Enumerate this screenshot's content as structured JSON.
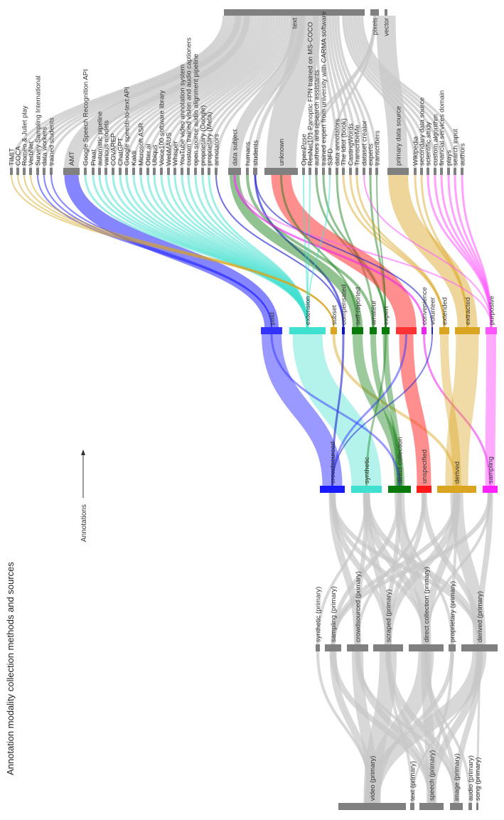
{
  "title": "Annotation modality collection methods and sources",
  "annotations_label": "Annotations",
  "colors": {
    "link_gray": "#c8c8c8",
    "node_gray": "#808080",
    "paid": "#3333ff",
    "extension": "#40e0d0",
    "subset": "#daa520",
    "compensated": "#1010cc",
    "self_reported": "#0a7a0a",
    "amateur": "#0a7a0a",
    "expert": "#0a7a0a",
    "unknown": "#ff3333",
    "convenience": "#ee22ee",
    "volunteer": "#2222cc",
    "extended": "#daa520",
    "extracted": "#daa520",
    "purposive": "#ff55ff",
    "crowdsourced": "#1a1aff",
    "synthetic": "#40e0d0",
    "direct": "#0a7a0a",
    "unspecified": "#ff1a1a",
    "derived": "#daa520",
    "sampling": "#ff22ff"
  },
  "modalities": [
    {
      "id": "text",
      "label": "text"
    },
    {
      "id": "pixels",
      "label": "pixels"
    },
    {
      "id": "vector",
      "label": "vector"
    }
  ],
  "sources": [
    {
      "id": "timit",
      "label": "TIMIT"
    },
    {
      "id": "coca",
      "label": "COCA"
    },
    {
      "id": "romeo",
      "label": "Romeo & Juliet play"
    },
    {
      "id": "verbnet",
      "label": "VerbNet"
    },
    {
      "id": "survey",
      "label": "Survey Sampling International"
    },
    {
      "id": "dataworkers",
      "label": "data workers"
    },
    {
      "id": "trained_students",
      "label": "trained students"
    },
    {
      "id": "amt",
      "label": "AMT"
    },
    {
      "id": "gsr",
      "label": "Google Speech Recognition API"
    },
    {
      "id": "praat",
      "label": "Praat"
    },
    {
      "id": "auto_pipeline",
      "label": "automatic pipeline"
    },
    {
      "id": "various_models",
      "label": "various models"
    },
    {
      "id": "covarep",
      "label": "COVAREP"
    },
    {
      "id": "chatgpt",
      "label": "ChatGPT"
    },
    {
      "id": "gstt",
      "label": "Google speech-to-text API"
    },
    {
      "id": "kaldi",
      "label": "Kaldi"
    },
    {
      "id": "msasr",
      "label": "Microsoft ASR"
    },
    {
      "id": "otter",
      "label": "Otter.ai"
    },
    {
      "id": "ubiqus",
      "label": "Ubiqus"
    },
    {
      "id": "voice100",
      "label": "Voice100 software library"
    },
    {
      "id": "webmaus",
      "label": "WebMAUS"
    },
    {
      "id": "whisper",
      "label": "Whisper"
    },
    {
      "id": "ytvas",
      "label": "YouTube video annotation system"
    },
    {
      "id": "custom_trained",
      "label": "custom trained vision and audio captioners"
    },
    {
      "id": "os_audio",
      "label": "open source audio alignment pipeline"
    },
    {
      "id": "prop_google",
      "label": "proprietary (Google)"
    },
    {
      "id": "prop_meta",
      "label": "proprietary (Meta)"
    },
    {
      "id": "annotators",
      "label": "annotators"
    },
    {
      "id": "data_subject",
      "label": "data subject"
    },
    {
      "id": "humans",
      "label": "humans"
    },
    {
      "id": "students",
      "label": "students"
    },
    {
      "id": "unknown",
      "label": "unknown"
    },
    {
      "id": "openpose",
      "label": "OpenPose"
    },
    {
      "id": "resnet",
      "label": "ResNet101 Panoptic FPN trained on MS-COCO"
    },
    {
      "id": "authors_assist",
      "label": "authors and research assistants"
    },
    {
      "id": "trained_expert",
      "label": "trained expert from university with CARMA software"
    },
    {
      "id": "s3fd",
      "label": "S3FD"
    },
    {
      "id": "data_annotators",
      "label": "data annotators"
    },
    {
      "id": "idiot",
      "label": "The Idiot (book)"
    },
    {
      "id": "castingwords",
      "label": "CastingWords"
    },
    {
      "id": "transcribeme",
      "label": "TranscribeMe"
    },
    {
      "id": "dataset_creator",
      "label": "dataset creator"
    },
    {
      "id": "experts",
      "label": "experts"
    },
    {
      "id": "transcribers",
      "label": "transcribers"
    },
    {
      "id": "primary_ds",
      "label": "primary data source"
    },
    {
      "id": "wikipedia",
      "label": "Wikipedia"
    },
    {
      "id": "secondary_ds",
      "label": "secondary data source"
    },
    {
      "id": "scientific",
      "label": "scientific study"
    },
    {
      "id": "custom_algo",
      "label": "custom algorithm"
    },
    {
      "id": "financial",
      "label": "financial services domain"
    },
    {
      "id": "plays",
      "label": "plays"
    },
    {
      "id": "search_input",
      "label": "search input"
    },
    {
      "id": "authors",
      "label": "authors"
    }
  ],
  "annotation_methods": [
    {
      "id": "paid",
      "label": "paid"
    },
    {
      "id": "extension",
      "label": "extension"
    },
    {
      "id": "subset",
      "label": "subset"
    },
    {
      "id": "compensated",
      "label": "compensated"
    },
    {
      "id": "self_reported",
      "label": "self-reported"
    },
    {
      "id": "amateur",
      "label": "amateur"
    },
    {
      "id": "expert",
      "label": "expert"
    },
    {
      "id": "unknown_m",
      "label": ""
    },
    {
      "id": "convenience",
      "label": "convenience"
    },
    {
      "id": "volunteer",
      "label": "volunteer"
    },
    {
      "id": "extended",
      "label": "extended"
    },
    {
      "id": "extracted",
      "label": "extracted"
    },
    {
      "id": "purposive",
      "label": "purposive"
    }
  ],
  "collection_types": [
    {
      "id": "crowdsourced",
      "label": "crowdsourced"
    },
    {
      "id": "synthetic",
      "label": "synthetic"
    },
    {
      "id": "direct",
      "label": "direct collection"
    },
    {
      "id": "unspecified",
      "label": "unspecified"
    },
    {
      "id": "derived",
      "label": "derived"
    },
    {
      "id": "sampling",
      "label": "sampling"
    }
  ],
  "primary_methods": [
    {
      "id": "p_synthetic",
      "label": "synthetic (primary)"
    },
    {
      "id": "p_sampling",
      "label": "sampling (primary)"
    },
    {
      "id": "p_crowdsourced",
      "label": "crowdsourced (primary)"
    },
    {
      "id": "p_scraped",
      "label": "scraped (primary)"
    },
    {
      "id": "p_direct",
      "label": "direct collection (primary)"
    },
    {
      "id": "p_proprietary",
      "label": "proprietary (primary)"
    },
    {
      "id": "p_derived",
      "label": "derived (primary)"
    }
  ],
  "primary_modalities": [
    {
      "id": "m_video",
      "label": "video (primary)"
    },
    {
      "id": "m_text",
      "label": "text (primary)"
    },
    {
      "id": "m_speech",
      "label": "speech (primary)"
    },
    {
      "id": "m_image",
      "label": "image (primary)"
    },
    {
      "id": "m_audio",
      "label": "audio (primary)"
    },
    {
      "id": "m_song",
      "label": "song (primary)"
    }
  ]
}
